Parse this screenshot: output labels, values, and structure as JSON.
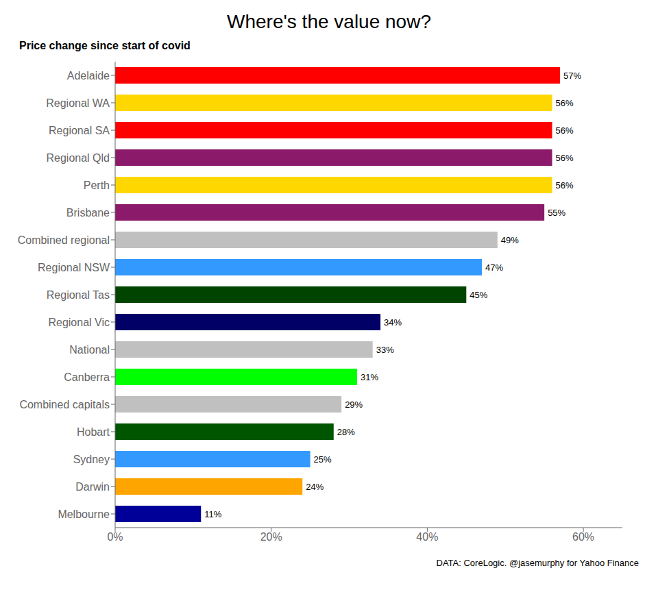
{
  "chart_data": {
    "type": "bar",
    "title": "Where's the value now?",
    "subtitle": "Price change since start of covid",
    "caption": "DATA: CoreLogic. @jasemurphy for Yahoo Finance",
    "orientation": "horizontal",
    "categories": [
      "Melbourne",
      "Darwin",
      "Sydney",
      "Hobart",
      "Combined capitals",
      "Canberra",
      "National",
      "Regional Vic",
      "Regional Tas",
      "Regional NSW",
      "Combined regional",
      "Brisbane",
      "Perth",
      "Regional Qld",
      "Regional SA",
      "Regional WA",
      "Adelaide"
    ],
    "values": [
      11,
      24,
      25,
      28,
      29,
      31,
      33,
      34,
      45,
      47,
      49,
      55,
      56,
      56,
      56,
      56,
      57
    ],
    "value_labels": [
      "11%",
      "24%",
      "25%",
      "28%",
      "29%",
      "31%",
      "33%",
      "34%",
      "45%",
      "47%",
      "49%",
      "55%",
      "56%",
      "56%",
      "56%",
      "56%",
      "57%"
    ],
    "data_labels": true,
    "colors": [
      "#000099",
      "#FFA500",
      "#3399FF",
      "#005500",
      "#C0C0C0",
      "#00FF00",
      "#C0C0C0",
      "#000066",
      "#004400",
      "#3399FF",
      "#C0C0C0",
      "#8B1A6B",
      "#FFD700",
      "#8B1A6B",
      "#FF0000",
      "#FFD700",
      "#FF0000"
    ],
    "xlim": [
      0,
      65
    ],
    "xticks": [
      {
        "value": 0,
        "label": "0%"
      },
      {
        "value": 20,
        "label": "20%"
      },
      {
        "value": 40,
        "label": "40%"
      },
      {
        "value": 60,
        "label": "60%"
      }
    ],
    "grid": false
  }
}
